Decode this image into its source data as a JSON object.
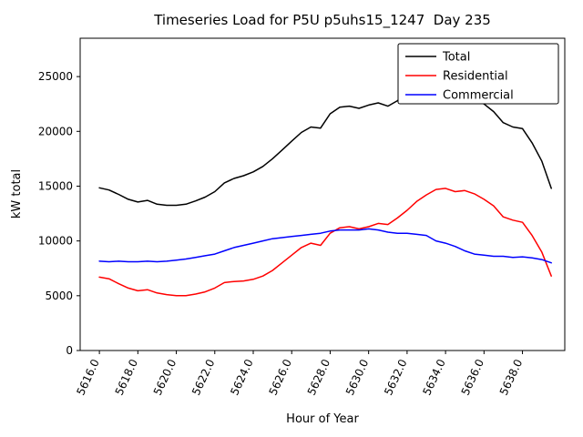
{
  "figure": {
    "background": "#ffffff"
  },
  "chart_data": {
    "type": "line",
    "title": "Timeseries Load for P5U p5uhs15_1247  Day 235",
    "xlabel": "Hour of Year",
    "ylabel": "kW total",
    "xlim": [
      5615.0,
      5640.2
    ],
    "ylim": [
      0,
      28500
    ],
    "grid": false,
    "legend_position": "upper right",
    "axis_color": "#000000",
    "xticks": [
      5616,
      5618,
      5620,
      5622,
      5624,
      5626,
      5628,
      5630,
      5632,
      5634,
      5636,
      5638
    ],
    "xtick_labels": [
      "5616.0",
      "5618.0",
      "5620.0",
      "5622.0",
      "5624.0",
      "5626.0",
      "5628.0",
      "5630.0",
      "5632.0",
      "5634.0",
      "5636.0",
      "5638.0"
    ],
    "yticks": [
      0,
      5000,
      10000,
      15000,
      20000,
      25000
    ],
    "ytick_labels": [
      "0",
      "5000",
      "10000",
      "15000",
      "20000",
      "25000"
    ],
    "x": [
      5616.0,
      5616.5,
      5617.0,
      5617.5,
      5618.0,
      5618.5,
      5619.0,
      5619.5,
      5620.0,
      5620.5,
      5621.0,
      5621.5,
      5622.0,
      5622.5,
      5623.0,
      5623.5,
      5624.0,
      5624.5,
      5625.0,
      5625.5,
      5626.0,
      5626.5,
      5627.0,
      5627.5,
      5628.0,
      5628.5,
      5629.0,
      5629.5,
      5630.0,
      5630.5,
      5631.0,
      5631.5,
      5632.0,
      5632.5,
      5633.0,
      5633.5,
      5634.0,
      5634.5,
      5635.0,
      5635.5,
      5636.0,
      5636.5,
      5637.0,
      5637.5,
      5638.0,
      5638.5,
      5639.0,
      5639.5
    ],
    "series": [
      {
        "name": "Total",
        "color": "#000000",
        "values": [
          14850,
          14650,
          14250,
          13800,
          13550,
          13700,
          13350,
          13250,
          13250,
          13350,
          13650,
          14000,
          14500,
          15300,
          15700,
          15950,
          16300,
          16800,
          17500,
          18300,
          19100,
          19900,
          20400,
          20300,
          21600,
          22200,
          22300,
          22100,
          22400,
          22600,
          22300,
          22800,
          23500,
          24200,
          24700,
          24750,
          24600,
          24000,
          23700,
          23100,
          22500,
          21800,
          20800,
          20400,
          20250,
          18950,
          17300,
          14800
        ]
      },
      {
        "name": "Residential",
        "color": "#ff0000",
        "values": [
          6700,
          6550,
          6100,
          5700,
          5450,
          5550,
          5250,
          5100,
          5000,
          5000,
          5150,
          5350,
          5700,
          6200,
          6300,
          6350,
          6500,
          6800,
          7300,
          8000,
          8700,
          9400,
          9800,
          9600,
          10700,
          11200,
          11300,
          11100,
          11300,
          11600,
          11500,
          12100,
          12800,
          13600,
          14200,
          14700,
          14800,
          14500,
          14600,
          14300,
          13800,
          13200,
          12200,
          11900,
          11700,
          10500,
          9000,
          6800
        ]
      },
      {
        "name": "Commercial",
        "color": "#0000ff",
        "values": [
          8150,
          8100,
          8150,
          8100,
          8100,
          8150,
          8100,
          8150,
          8250,
          8350,
          8500,
          8650,
          8800,
          9100,
          9400,
          9600,
          9800,
          10000,
          10200,
          10300,
          10400,
          10500,
          10600,
          10700,
          10900,
          11000,
          11000,
          11000,
          11100,
          11000,
          10800,
          10700,
          10700,
          10600,
          10500,
          10000,
          9800,
          9500,
          9100,
          8800,
          8700,
          8600,
          8600,
          8500,
          8550,
          8450,
          8300,
          8000
        ]
      }
    ]
  }
}
